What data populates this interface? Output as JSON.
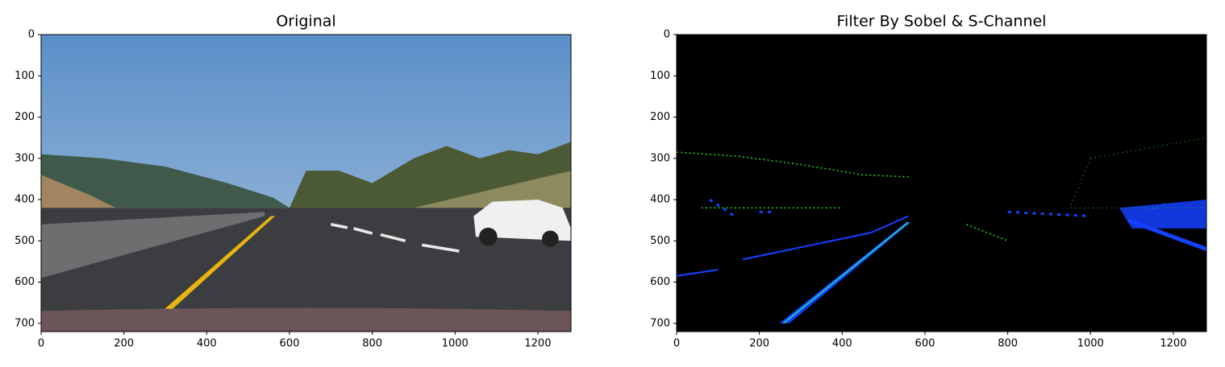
{
  "chart_data": [
    {
      "type": "image",
      "title": "Original",
      "xlim": [
        0,
        1280
      ],
      "ylim": [
        720,
        0
      ],
      "xticks": [
        0,
        200,
        400,
        600,
        800,
        1000,
        1200
      ],
      "yticks": [
        0,
        100,
        200,
        300,
        400,
        500,
        600,
        700
      ]
    },
    {
      "type": "image",
      "title": "Filter By Sobel & S-Channel",
      "xlim": [
        0,
        1280
      ],
      "ylim": [
        720,
        0
      ],
      "xticks": [
        0,
        200,
        400,
        600,
        800,
        1000,
        1200
      ],
      "yticks": [
        0,
        100,
        200,
        300,
        400,
        500,
        600,
        700
      ]
    }
  ]
}
